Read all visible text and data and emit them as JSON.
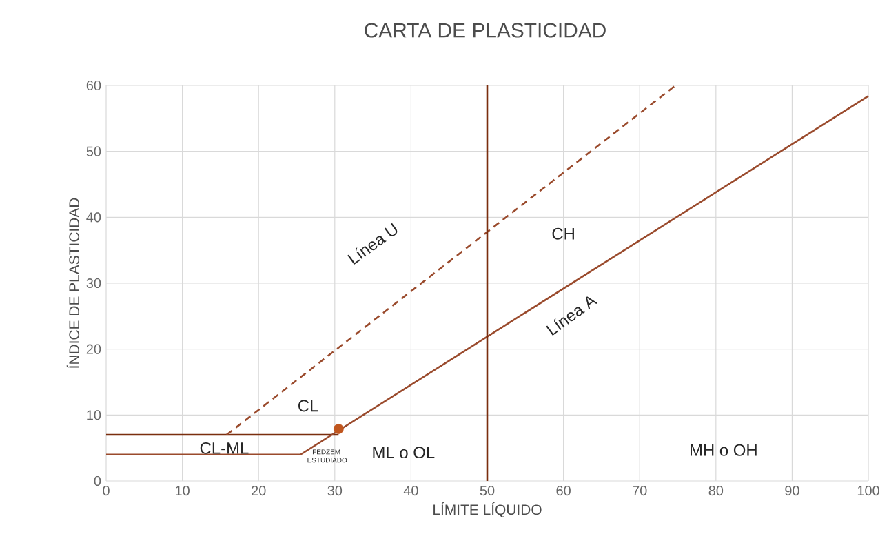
{
  "chart_data": {
    "type": "line",
    "title": "CARTA DE PLASTICIDAD",
    "xlabel": "LÍMITE LÍQUIDO",
    "ylabel": "ÍNDICE DE PLASTICIDAD",
    "xlim": [
      0,
      100
    ],
    "ylim": [
      0,
      60
    ],
    "xticks": [
      0,
      10,
      20,
      30,
      40,
      50,
      60,
      70,
      80,
      90,
      100
    ],
    "yticks": [
      0,
      10,
      20,
      30,
      40,
      50,
      60
    ],
    "grid": true,
    "marker": "none",
    "series": [
      {
        "color": "#7a2e0e",
        "x": [
          0,
          30.5
        ],
        "values": [
          7,
          7
        ]
      },
      {
        "color": "#9a4a2c",
        "x": [
          0,
          25.5
        ],
        "values": [
          4,
          4
        ]
      },
      {
        "color": "#9a4a2c",
        "x": [
          25.5,
          100
        ],
        "values": [
          4,
          58.4
        ]
      },
      {
        "color": "#9a4a2c",
        "x": [
          15.8,
          74.7
        ],
        "values": [
          7,
          60
        ],
        "line_style": "dashed"
      },
      {
        "color": "#7a2e0e",
        "x": [
          50,
          50
        ],
        "values": [
          0,
          60
        ]
      },
      {
        "type": "scatter",
        "marker": "circle",
        "color": "#c0561e",
        "x": [
          30.5
        ],
        "values": [
          7.9
        ]
      }
    ],
    "annotations": [
      "CL",
      "CL-ML",
      "FEDZEM ESTUDIADO",
      "ML o OL",
      "MH o OH",
      "CH",
      "Línea U",
      "Línea A"
    ]
  }
}
